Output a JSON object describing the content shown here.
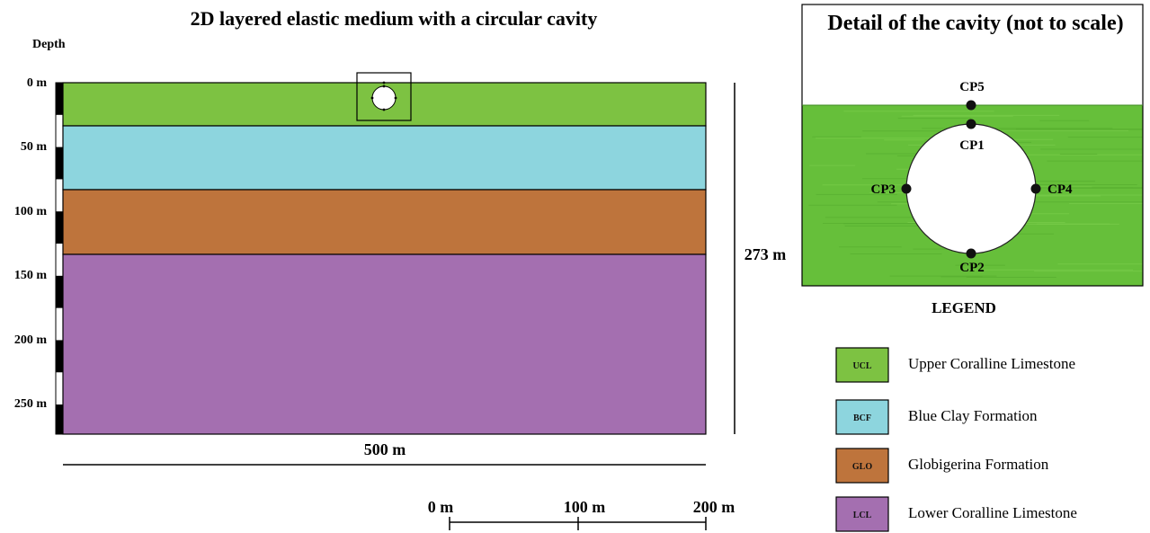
{
  "title": "2D layered elastic medium with a circular cavity",
  "depth_axis": {
    "label": "Depth",
    "ticks": [
      "0 m",
      "50 m",
      "100 m",
      "150 m",
      "200 m",
      "250 m"
    ]
  },
  "model": {
    "width_label": "500 m",
    "height_label": "273 m",
    "layers": [
      {
        "code": "UCL",
        "color": "#7dc242",
        "top_m": 0,
        "bottom_m": 33
      },
      {
        "code": "BCF",
        "color": "#8dd5de",
        "top_m": 33,
        "bottom_m": 83
      },
      {
        "code": "GLO",
        "color": "#be743c",
        "top_m": 83,
        "bottom_m": 133
      },
      {
        "code": "LCL",
        "color": "#a46fb0",
        "top_m": 133,
        "bottom_m": 273
      }
    ]
  },
  "scale_bar": {
    "labels": [
      "0 m",
      "100 m",
      "200 m"
    ]
  },
  "detail": {
    "title": "Detail of the cavity (not to scale)",
    "points": [
      "CP1",
      "CP2",
      "CP3",
      "CP4",
      "CP5"
    ]
  },
  "legend": {
    "title": "LEGEND",
    "items": [
      {
        "code": "UCL",
        "label": "Upper Coralline Limestone",
        "color": "#7dc242"
      },
      {
        "code": "BCF",
        "label": "Blue Clay Formation",
        "color": "#8dd5de"
      },
      {
        "code": "GLO",
        "label": "Globigerina Formation",
        "color": "#be743c"
      },
      {
        "code": "LCL",
        "label": "Lower Coralline Limestone",
        "color": "#a46fb0"
      }
    ]
  }
}
